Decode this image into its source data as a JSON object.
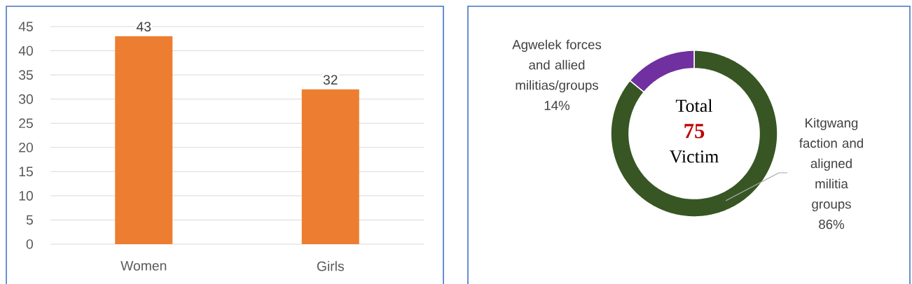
{
  "chart_data": [
    {
      "type": "bar",
      "categories": [
        "Women",
        "Girls"
      ],
      "values": [
        43,
        32
      ],
      "color": "#ed7d31",
      "ylim": [
        0,
        45
      ],
      "yticks": [
        0,
        5,
        10,
        15,
        20,
        25,
        30,
        35,
        40,
        45
      ],
      "grid": "y",
      "data_labels": true
    },
    {
      "type": "donut",
      "categories": [
        "Kitgwang faction and aligned militia groups",
        "Agwelek forces and allied militias/groups"
      ],
      "values": [
        86,
        14
      ],
      "colors": [
        "#375623",
        "#7030a0"
      ],
      "value_labels": [
        "86%",
        "14%"
      ],
      "annotations": [
        "Total",
        "75",
        "Victim"
      ]
    }
  ]
}
